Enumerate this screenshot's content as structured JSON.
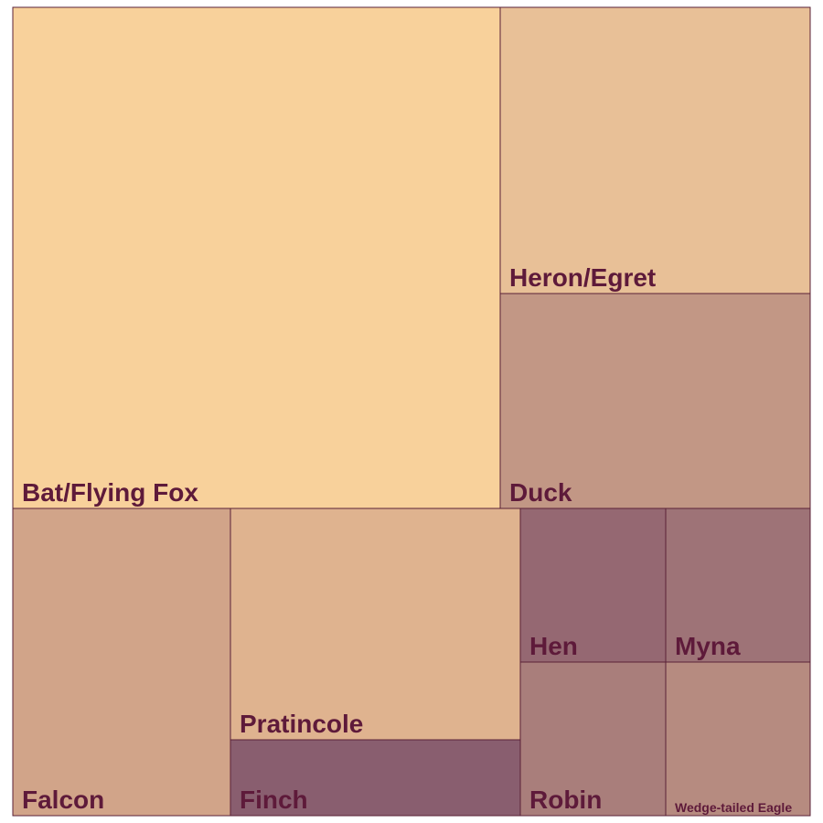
{
  "chart_data": {
    "type": "treemap",
    "items": [
      {
        "label": "Bat/Flying Fox",
        "color": "#f8d19b",
        "value": 293
      },
      {
        "label": "Heron/Egret",
        "color": "#e8c097",
        "value": 106
      },
      {
        "label": "Duck",
        "color": "#c29785",
        "value": 80
      },
      {
        "label": "Falcon",
        "color": "#d1a489",
        "value": 80
      },
      {
        "label": "Pratincole",
        "color": "#dfb38f",
        "value": 80
      },
      {
        "label": "Finch",
        "color": "#895e6f",
        "value": 27
      },
      {
        "label": "Hen",
        "color": "#956872",
        "value": 27
      },
      {
        "label": "Myna",
        "color": "#9e7377",
        "value": 27
      },
      {
        "label": "Robin",
        "color": "#a97e7b",
        "value": 27
      },
      {
        "label": "Wedge-tailed Eagle",
        "color": "#b68b80",
        "value": 27
      }
    ]
  }
}
